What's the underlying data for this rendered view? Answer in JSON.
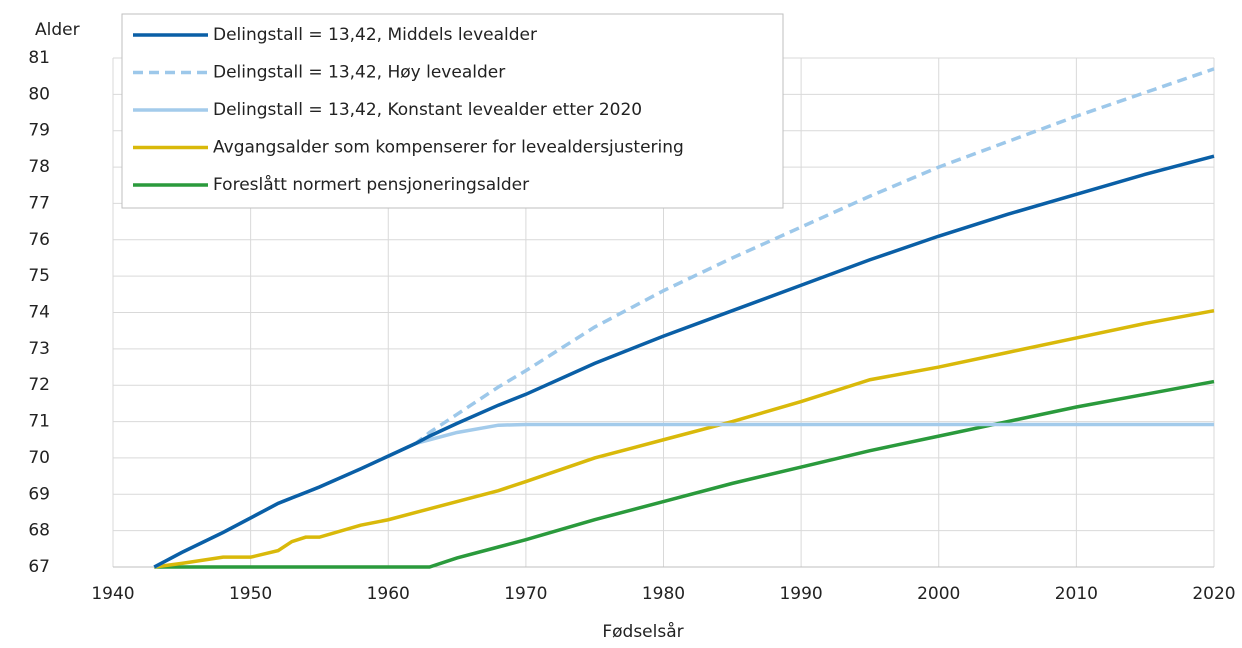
{
  "chart_data": {
    "type": "line",
    "x_label": "Fødselsår",
    "y_label": "Alder",
    "x": [
      1943,
      1945,
      1948,
      1950,
      1952,
      1953,
      1954,
      1955,
      1958,
      1960,
      1962,
      1963,
      1965,
      1968,
      1970,
      1975,
      1980,
      1985,
      1990,
      1995,
      2000,
      2005,
      2010,
      2015,
      2020
    ],
    "series": [
      {
        "name": "Delingstall = 13,42, Middels levealder",
        "color": "#0a5fa6",
        "dashed": false,
        "values": [
          67,
          67.4,
          67.95,
          68.35,
          68.75,
          68.9,
          69.05,
          69.2,
          69.7,
          70.05,
          70.4,
          70.6,
          70.95,
          71.45,
          71.75,
          72.6,
          73.35,
          74.05,
          74.75,
          75.45,
          76.1,
          76.7,
          77.25,
          77.8,
          78.3
        ]
      },
      {
        "name": "Delingstall = 13,42, Høy levealder",
        "color": "#9dc8ea",
        "dashed": true,
        "values": [
          67,
          67.4,
          67.95,
          68.35,
          68.75,
          68.9,
          69.05,
          69.2,
          69.7,
          70.05,
          70.4,
          70.7,
          71.2,
          71.95,
          72.4,
          73.6,
          74.6,
          75.5,
          76.35,
          77.2,
          78.0,
          78.7,
          79.4,
          80.05,
          80.7
        ]
      },
      {
        "name": "Delingstall = 13,42, Konstant levealder etter 2020",
        "color": "#a3cbeb",
        "dashed": false,
        "values": [
          67,
          67.4,
          67.95,
          68.35,
          68.75,
          68.9,
          69.05,
          69.2,
          69.7,
          70.05,
          70.4,
          70.5,
          70.7,
          70.9,
          70.92,
          70.92,
          70.92,
          70.92,
          70.92,
          70.92,
          70.92,
          70.92,
          70.92,
          70.92,
          70.92
        ]
      },
      {
        "name": "Avgangsalder som kompenserer for levealdersjustering",
        "color": "#d9b90a",
        "dashed": false,
        "values": [
          67,
          67.1,
          67.27,
          67.27,
          67.45,
          67.7,
          67.82,
          67.82,
          68.15,
          68.3,
          68.5,
          68.6,
          68.8,
          69.1,
          69.35,
          70.0,
          70.5,
          71.0,
          71.55,
          72.15,
          72.5,
          72.9,
          73.3,
          73.7,
          74.05
        ]
      },
      {
        "name": "Foreslått normert pensjoneringsalder",
        "color": "#2a9a3c",
        "dashed": false,
        "values": [
          67,
          67,
          67,
          67,
          67,
          67,
          67,
          67,
          67,
          67,
          67,
          67,
          67.25,
          67.55,
          67.75,
          68.3,
          68.8,
          69.3,
          69.75,
          70.2,
          70.6,
          71.0,
          71.4,
          71.75,
          72.1
        ]
      }
    ],
    "xlim": [
      1940,
      2020
    ],
    "xticks": [
      1940,
      1950,
      1960,
      1970,
      1980,
      1990,
      2000,
      2010,
      2020
    ],
    "ylim": [
      67,
      81
    ],
    "yticks": [
      67,
      68,
      69,
      70,
      71,
      72,
      73,
      74,
      75,
      76,
      77,
      78,
      79,
      80,
      81
    ],
    "grid": true,
    "legend": "top-left"
  }
}
